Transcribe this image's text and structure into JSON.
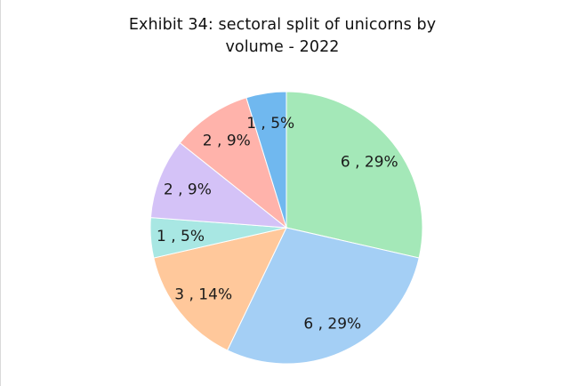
{
  "chart_data": {
    "type": "pie",
    "title_line1": "Exhibit 34: sectoral split of unicorns by",
    "title_line2": "volume - 2022",
    "legend": "none",
    "slices": [
      {
        "value": 6,
        "percent": 29,
        "label": "6 , 29%",
        "color": "#a4e8b8"
      },
      {
        "value": 6,
        "percent": 29,
        "label": "6 , 29%",
        "color": "#a4cff5"
      },
      {
        "value": 3,
        "percent": 14,
        "label": "3 , 14%",
        "color": "#ffc89b"
      },
      {
        "value": 1,
        "percent": 5,
        "label": "1 , 5%",
        "color": "#a8e7e3"
      },
      {
        "value": 2,
        "percent": 9,
        "label": "2 , 9%",
        "color": "#d4c2f7"
      },
      {
        "value": 2,
        "percent": 9,
        "label": "2 , 9%",
        "color": "#ffb3ab"
      },
      {
        "value": 1,
        "percent": 5,
        "label": "1 , 5%",
        "color": "#70b8ef"
      }
    ]
  }
}
